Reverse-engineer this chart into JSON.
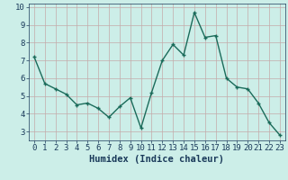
{
  "x": [
    0,
    1,
    2,
    3,
    4,
    5,
    6,
    7,
    8,
    9,
    10,
    11,
    12,
    13,
    14,
    15,
    16,
    17,
    18,
    19,
    20,
    21,
    22,
    23
  ],
  "y": [
    7.2,
    5.7,
    5.4,
    5.1,
    4.5,
    4.6,
    4.3,
    3.8,
    4.4,
    4.9,
    3.2,
    5.2,
    7.0,
    7.9,
    7.3,
    9.7,
    8.3,
    8.4,
    6.0,
    5.5,
    5.4,
    4.6,
    3.5,
    2.8
  ],
  "bg_color": "#cceee8",
  "plot_bg_color": "#cceee8",
  "grid_color": "#c4aaaa",
  "line_color": "#1a6b5a",
  "marker_color": "#1a6b5a",
  "xlabel": "Humidex (Indice chaleur)",
  "xlim": [
    -0.5,
    23.5
  ],
  "ylim": [
    2.5,
    10.2
  ],
  "yticks": [
    3,
    4,
    5,
    6,
    7,
    8,
    9,
    10
  ],
  "xticks": [
    0,
    1,
    2,
    3,
    4,
    5,
    6,
    7,
    8,
    9,
    10,
    11,
    12,
    13,
    14,
    15,
    16,
    17,
    18,
    19,
    20,
    21,
    22,
    23
  ],
  "tick_color": "#1a3a5a",
  "xlabel_fontsize": 7.5,
  "tick_fontsize": 6.5,
  "linewidth": 1.0,
  "markersize": 3.5,
  "markeredgewidth": 1.0
}
